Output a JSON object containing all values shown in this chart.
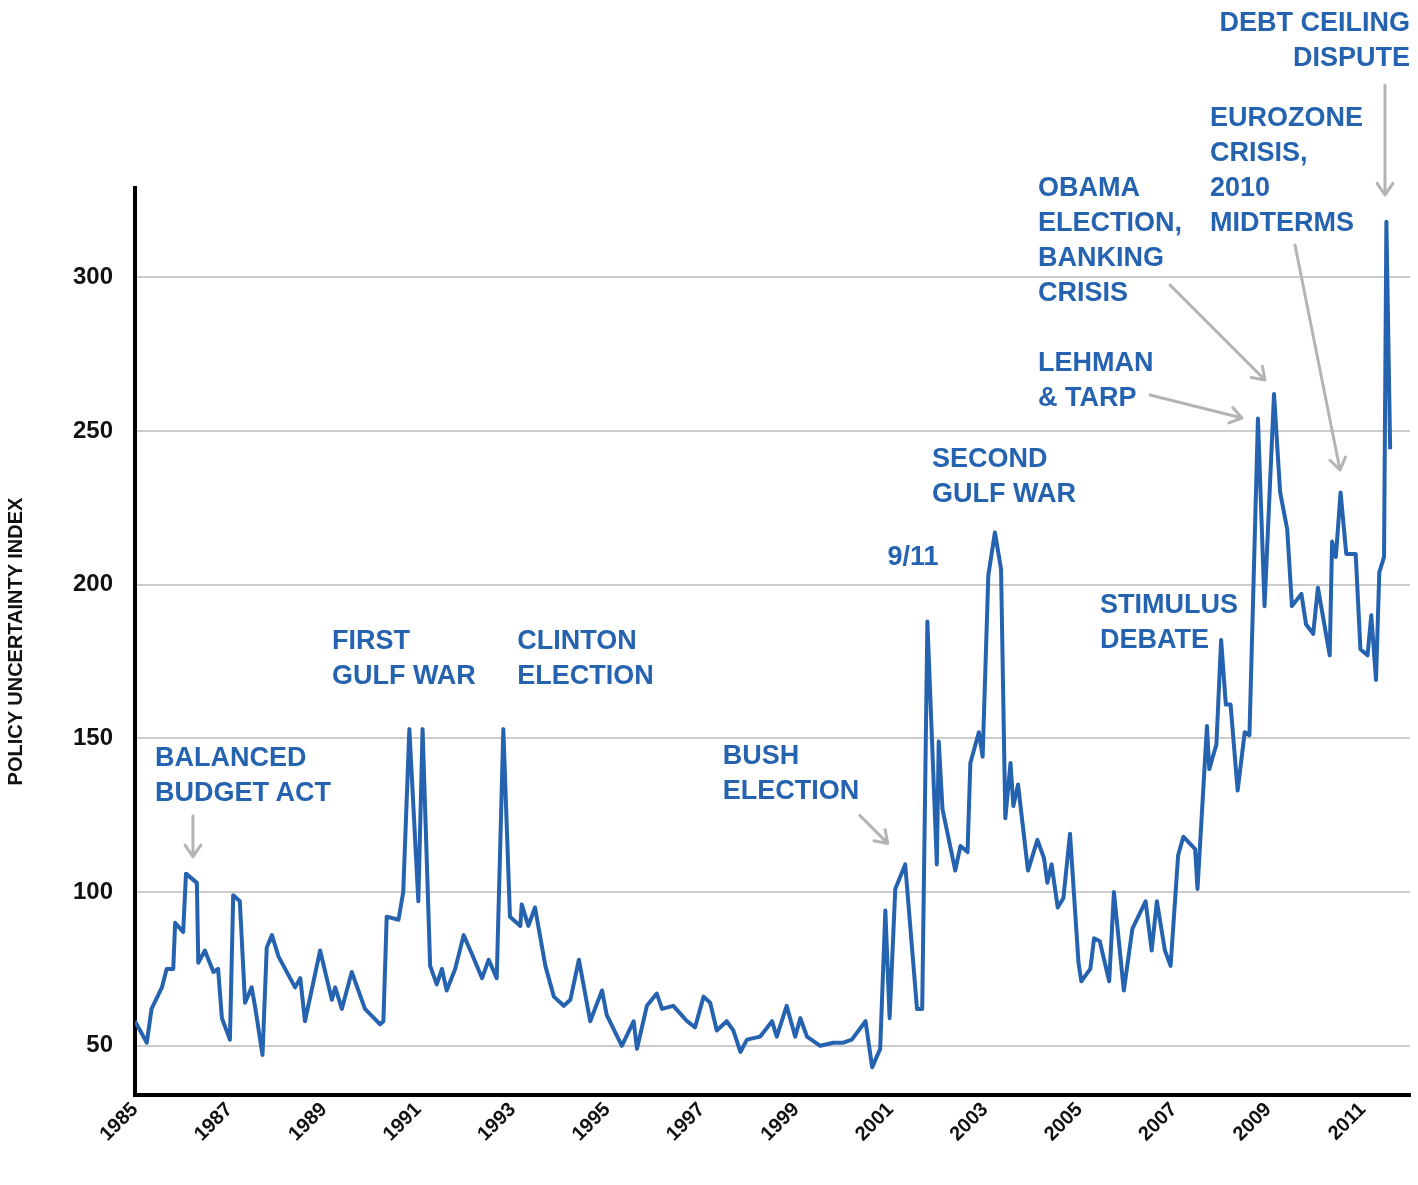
{
  "chart_data": {
    "type": "line",
    "ylabel": "POLICY UNCERTAINTY INDEX",
    "xlim": [
      1985,
      2012
    ],
    "xticks": [
      1985,
      1987,
      1989,
      1991,
      1993,
      1995,
      1997,
      1999,
      2001,
      2003,
      2005,
      2007,
      2009,
      2011
    ],
    "ylim": [
      34,
      329
    ],
    "yticks": [
      50,
      100,
      150,
      200,
      250,
      300
    ],
    "grid": "y",
    "legend": false,
    "series": [
      {
        "color": "#2563b0",
        "x": [
          1985.0,
          1985.25,
          1985.35,
          1985.57,
          1985.67,
          1985.81,
          1985.85,
          1986.02,
          1986.08,
          1986.31,
          1986.34,
          1986.48,
          1986.66,
          1986.76,
          1986.84,
          1987.01,
          1987.08,
          1987.22,
          1987.33,
          1987.47,
          1987.54,
          1987.7,
          1987.79,
          1987.9,
          1988.04,
          1988.39,
          1988.5,
          1988.6,
          1988.92,
          1989.06,
          1989.17,
          1989.24,
          1989.38,
          1989.59,
          1989.87,
          1990.19,
          1990.26,
          1990.33,
          1990.58,
          1990.68,
          1990.81,
          1991.0,
          1991.09,
          1991.25,
          1991.39,
          1991.5,
          1991.6,
          1991.78,
          1991.96,
          1992.13,
          1992.35,
          1992.49,
          1992.66,
          1992.8,
          1992.94,
          1993.16,
          1993.19,
          1993.33,
          1993.47,
          1993.69,
          1993.87,
          1994.08,
          1994.22,
          1994.4,
          1994.64,
          1994.89,
          1994.99,
          1995.31,
          1995.56,
          1995.63,
          1995.84,
          1996.05,
          1996.16,
          1996.4,
          1996.69,
          1996.86,
          1997.04,
          1997.18,
          1997.32,
          1997.53,
          1997.67,
          1997.82,
          1997.96,
          1998.24,
          1998.49,
          1998.59,
          1998.8,
          1998.98,
          1999.09,
          1999.23,
          1999.51,
          1999.79,
          2000.0,
          2000.18,
          2000.47,
          2000.61,
          2000.78,
          2000.89,
          2000.98,
          2001.1,
          2001.31,
          2001.56,
          2001.67,
          2001.78,
          2001.98,
          2002.02,
          2002.1,
          2002.37,
          2002.48,
          2002.63,
          2002.69,
          2002.87,
          2002.95,
          2003.07,
          2003.21,
          2003.34,
          2003.43,
          2003.54,
          2003.6,
          2003.7,
          2003.91,
          2004.11,
          2004.25,
          2004.32,
          2004.41,
          2004.54,
          2004.66,
          2004.8,
          2004.98,
          2005.04,
          2005.23,
          2005.31,
          2005.43,
          2005.63,
          2005.73,
          2005.94,
          2006.12,
          2006.4,
          2006.53,
          2006.64,
          2006.81,
          2006.93,
          2007.09,
          2007.2,
          2007.45,
          2007.5,
          2007.7,
          2007.75,
          2007.9,
          2008.0,
          2008.1,
          2008.2,
          2008.35,
          2008.5,
          2008.6,
          2008.78,
          2008.92,
          2009.12,
          2009.25,
          2009.4,
          2009.5,
          2009.7,
          2009.8,
          2009.95,
          2010.05,
          2010.3,
          2010.35,
          2010.43,
          2010.53,
          2010.65,
          2010.85,
          2010.95,
          2011.1,
          2011.18,
          2011.28,
          2011.35,
          2011.45,
          2011.5,
          2011.58
        ],
        "values": [
          58,
          51,
          62,
          69,
          75,
          75,
          90,
          87,
          106,
          103,
          77,
          81,
          74,
          75,
          59,
          52,
          99,
          97,
          64,
          69,
          63,
          47,
          82,
          86,
          79,
          69,
          72,
          58,
          81,
          72,
          65,
          69,
          62,
          74,
          62,
          57,
          58,
          92,
          91,
          100,
          153,
          97,
          153,
          76,
          70,
          75,
          68,
          75,
          86,
          80,
          72,
          78,
          72,
          153,
          92,
          89,
          96,
          89,
          95,
          76,
          66,
          63,
          65,
          78,
          58,
          68,
          60,
          50,
          58,
          49,
          63,
          67,
          62,
          63,
          58,
          56,
          66,
          64,
          55,
          58,
          55,
          48,
          52,
          53,
          58,
          53,
          63,
          53,
          59,
          53,
          50,
          51,
          51,
          52,
          58,
          43,
          49,
          94,
          59,
          101,
          109,
          62,
          62,
          188,
          109,
          149,
          127,
          107,
          115,
          113,
          142,
          152,
          144,
          203,
          217,
          205,
          124,
          142,
          128,
          135,
          107,
          117,
          111,
          103,
          109,
          95,
          98,
          119,
          77,
          71,
          75,
          85,
          84,
          71,
          100,
          68,
          88,
          97,
          81,
          97,
          81,
          76,
          112,
          118,
          114,
          101,
          154,
          140,
          148,
          182,
          161,
          161,
          133,
          152,
          151,
          254,
          193,
          262,
          230,
          218,
          193,
          197,
          187,
          184,
          199,
          177,
          214,
          209,
          230,
          210,
          210,
          179,
          177,
          190,
          169,
          204,
          209,
          318,
          244
        ]
      }
    ],
    "annotations": [
      {
        "text": "BALANCED\nBUDGET ACT",
        "x": 1986.1,
        "y": 106
      },
      {
        "text": "FIRST\nGULF WAR",
        "x": 1990.8,
        "y": 153
      },
      {
        "text": "CLINTON\nELECTION",
        "x": 1992.8,
        "y": 153
      },
      {
        "text": "BUSH\nELECTION",
        "x": 2001.3,
        "y": 109
      },
      {
        "text": "9/11",
        "x": 2001.78,
        "y": 188
      },
      {
        "text": "SECOND\nGULF WAR",
        "x": 2003.21,
        "y": 217
      },
      {
        "text": "STIMULUS\nDEBATE",
        "x": 2008.0,
        "y": 182
      },
      "LEHMAN\n& TARP",
      "OBAMA\nELECTION,\nBANKING\nCRISIS",
      "EUROZONE\nCRISIS,\n2010\nMIDTERMS",
      "DEBT CEILING\nDISPUTE"
    ]
  }
}
